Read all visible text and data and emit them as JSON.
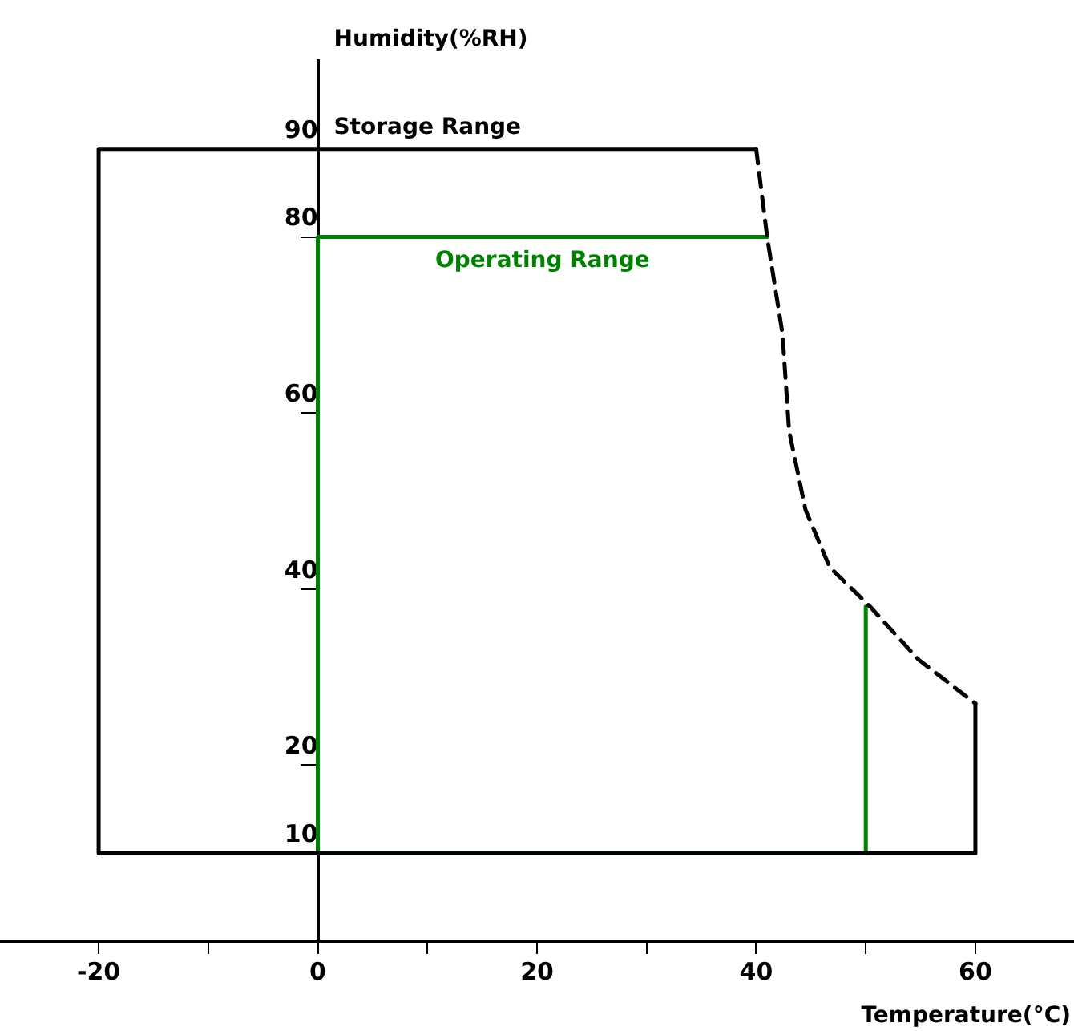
{
  "chart_data": {
    "type": "line",
    "xlabel": "Temperature(°C)",
    "ylabel": "Humidity(%RH)",
    "xlim": [
      -29,
      69
    ],
    "ylim": [
      0,
      100
    ],
    "xticks": [
      -20,
      {
        "value": -10,
        "label": null
      },
      0,
      {
        "value": 10,
        "label": null
      },
      20,
      {
        "value": 30,
        "label": null
      },
      40,
      {
        "value": 50,
        "label": null
      },
      60
    ],
    "yticks": [
      10,
      20,
      40,
      60,
      80,
      90
    ],
    "grid": false,
    "legend": false,
    "marker": "none",
    "series": [
      {
        "name": "Storage Range",
        "color": "#000000",
        "line_style": "solid",
        "x": [
          60,
          60,
          -20,
          -20,
          40
        ],
        "values": [
          27,
          10,
          10,
          90,
          90
        ]
      },
      {
        "color": "#000000",
        "line_style": "dashed",
        "x": [
          40,
          41,
          42.4,
          43,
          44.5,
          46.7,
          50.4,
          54.8,
          60
        ],
        "values": [
          90,
          80,
          69,
          58,
          49,
          42.5,
          38,
          32,
          27
        ]
      },
      {
        "name": "Operating Range",
        "color": "#008000",
        "line_style": "solid",
        "x": [
          50,
          50,
          0,
          0,
          41
        ],
        "values": [
          38,
          10,
          10,
          80,
          80
        ]
      }
    ]
  }
}
